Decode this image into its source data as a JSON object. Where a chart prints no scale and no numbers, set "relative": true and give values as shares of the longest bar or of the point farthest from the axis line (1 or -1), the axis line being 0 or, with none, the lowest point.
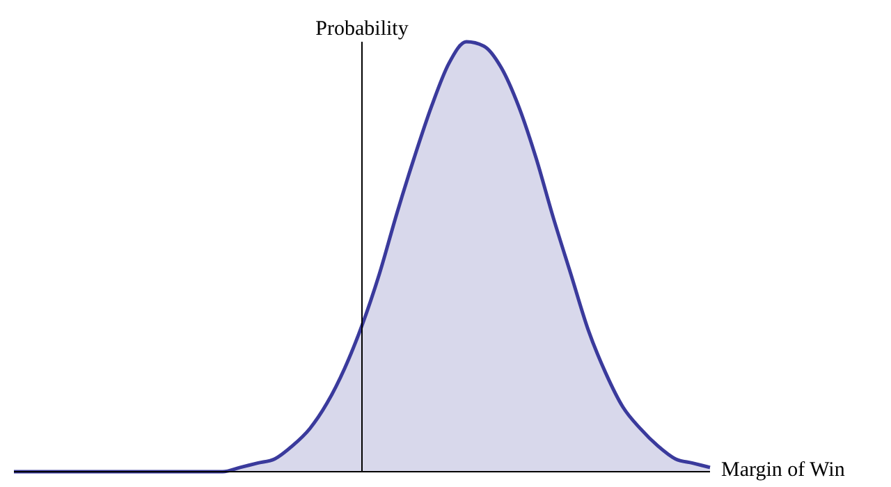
{
  "chart_data": {
    "type": "area",
    "relative": true,
    "xlabel": "Margin of Win",
    "ylabel": "Probability",
    "categories": [
      null,
      null,
      null,
      null,
      null,
      null,
      null,
      null,
      null,
      null,
      null,
      null,
      null,
      null,
      null,
      null,
      null,
      null,
      null,
      null,
      null,
      null,
      null,
      null,
      null,
      null,
      null,
      null,
      null,
      null,
      null,
      null,
      null,
      null,
      null,
      null,
      null,
      null,
      null,
      null,
      null
    ],
    "series": [
      {
        "color": "#3a3a9c",
        "values": [
          0,
          0,
          0,
          0,
          0,
          0,
          0,
          0,
          0,
          0,
          0,
          0,
          0,
          0.01,
          0.02,
          0.03,
          0.06,
          0.1,
          0.16,
          0.24,
          0.34,
          0.46,
          0.6,
          0.73,
          0.85,
          0.95,
          1,
          0.99,
          0.94,
          0.85,
          0.73,
          0.59,
          0.46,
          0.33,
          0.23,
          0.15,
          0.1,
          0.06,
          0.03,
          0.02,
          0.01
        ]
      }
    ]
  }
}
